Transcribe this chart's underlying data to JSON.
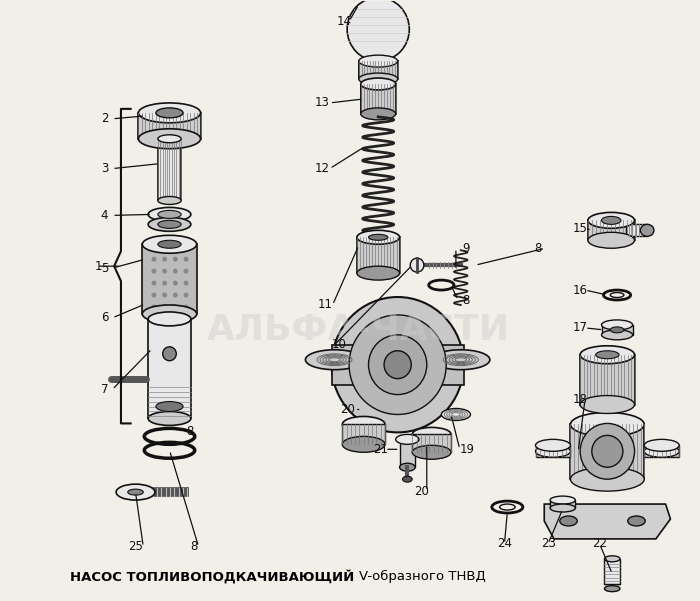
{
  "background_color": "#f2efe9",
  "title_bold": "НАСОС ТОПЛИВОПОДКАЧИВАЮЩИЙ ",
  "title_normal": "V-образного ТНВД",
  "watermark": "АЛЬФА-ЧАСТИ",
  "watermark_color": "#cccccc",
  "watermark_alpha": 0.45,
  "fig_width": 7.0,
  "fig_height": 6.01,
  "dpi": 100,
  "label_fs": 8.5,
  "title_fs": 9.5
}
